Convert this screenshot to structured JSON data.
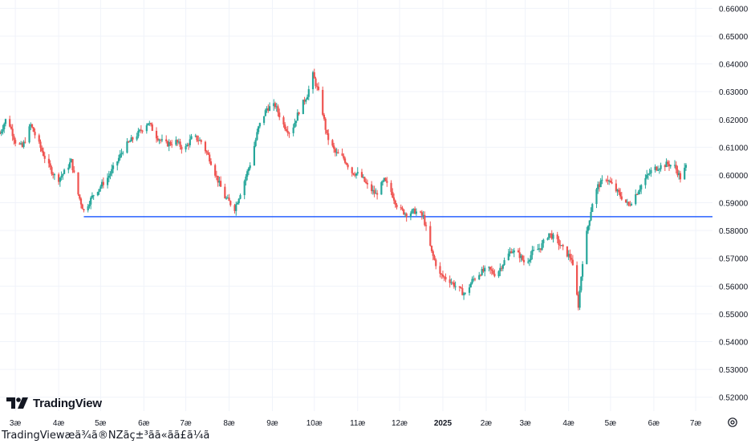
{
  "logo": {
    "text": "TradingView",
    "icon": "tradingview-logo-icon"
  },
  "caption": "TradingViewæä¾ã®NZãç±³ãã«ãã£ã¼ã",
  "settings_icon": "gear-icon",
  "colors": {
    "up": "#26a69a",
    "down": "#ef5350",
    "support_line": "#2962ff",
    "grid": "#f0f3fa"
  },
  "chart_data": {
    "type": "candlestick",
    "title": "",
    "xlabel": "",
    "ylabel": "",
    "ylim": [
      0.515,
      0.663
    ],
    "y_ticks": [
      "0.52000",
      "0.53000",
      "0.54000",
      "0.55000",
      "0.56000",
      "0.57000",
      "0.58000",
      "0.59000",
      "0.60000",
      "0.61000",
      "0.62000",
      "0.63000",
      "0.64000",
      "0.65000",
      "0.66000"
    ],
    "x_ticks": [
      "3æ",
      "4æ",
      "5æ",
      "6æ",
      "7æ",
      "8æ",
      "9æ",
      "10æ",
      "11æ",
      "12æ",
      "2025",
      "2æ",
      "3æ",
      "4æ",
      "5æ",
      "6æ",
      "7æ"
    ],
    "x_tick_bold": "2025",
    "x_range": [
      "2024-02-19",
      "2025-07-13"
    ],
    "x_tick_dates": [
      "2024-03-01",
      "2024-04-01",
      "2024-05-01",
      "2024-06-01",
      "2024-07-01",
      "2024-08-01",
      "2024-09-01",
      "2024-10-01",
      "2024-11-01",
      "2024-12-01",
      "2025-01-01",
      "2025-02-01",
      "2025-03-01",
      "2025-04-01",
      "2025-05-01",
      "2025-06-01",
      "2025-07-01"
    ],
    "horizontal_line": {
      "value": 0.585,
      "from": "2024-04-19",
      "to": "2025-07-13"
    },
    "path_anchors": [
      [
        "2024-02-19",
        0.615
      ],
      [
        "2024-02-24",
        0.621
      ],
      [
        "2024-03-01",
        0.612
      ],
      [
        "2024-03-06",
        0.61
      ],
      [
        "2024-03-12",
        0.618
      ],
      [
        "2024-03-18",
        0.611
      ],
      [
        "2024-03-24",
        0.604
      ],
      [
        "2024-03-31",
        0.598
      ],
      [
        "2024-04-05",
        0.601
      ],
      [
        "2024-04-10",
        0.605
      ],
      [
        "2024-04-15",
        0.593
      ],
      [
        "2024-04-19",
        0.587
      ],
      [
        "2024-04-26",
        0.593
      ],
      [
        "2024-05-01",
        0.596
      ],
      [
        "2024-05-06",
        0.599
      ],
      [
        "2024-05-12",
        0.604
      ],
      [
        "2024-05-18",
        0.61
      ],
      [
        "2024-05-24",
        0.613
      ],
      [
        "2024-05-28",
        0.615
      ],
      [
        "2024-06-04",
        0.619
      ],
      [
        "2024-06-10",
        0.614
      ],
      [
        "2024-06-16",
        0.611
      ],
      [
        "2024-06-24",
        0.612
      ],
      [
        "2024-06-30",
        0.609
      ],
      [
        "2024-07-06",
        0.614
      ],
      [
        "2024-07-12",
        0.612
      ],
      [
        "2024-07-18",
        0.606
      ],
      [
        "2024-07-24",
        0.598
      ],
      [
        "2024-07-29",
        0.592
      ],
      [
        "2024-08-05",
        0.588
      ],
      [
        "2024-08-10",
        0.595
      ],
      [
        "2024-08-16",
        0.604
      ],
      [
        "2024-08-22",
        0.617
      ],
      [
        "2024-08-28",
        0.624
      ],
      [
        "2024-09-03",
        0.625
      ],
      [
        "2024-09-09",
        0.618
      ],
      [
        "2024-09-14",
        0.615
      ],
      [
        "2024-09-20",
        0.623
      ],
      [
        "2024-09-26",
        0.629
      ],
      [
        "2024-09-30",
        0.636
      ],
      [
        "2024-10-05",
        0.628
      ],
      [
        "2024-10-10",
        0.614
      ],
      [
        "2024-10-16",
        0.608
      ],
      [
        "2024-10-22",
        0.606
      ],
      [
        "2024-10-28",
        0.601
      ],
      [
        "2024-11-03",
        0.6
      ],
      [
        "2024-11-08",
        0.596
      ],
      [
        "2024-11-14",
        0.593
      ],
      [
        "2024-11-20",
        0.598
      ],
      [
        "2024-11-25",
        0.594
      ],
      [
        "2024-11-30",
        0.588
      ],
      [
        "2024-12-06",
        0.586
      ],
      [
        "2024-12-12",
        0.587
      ],
      [
        "2024-12-18",
        0.585
      ],
      [
        "2024-12-24",
        0.572
      ],
      [
        "2024-12-30",
        0.564
      ],
      [
        "2025-01-06",
        0.562
      ],
      [
        "2025-01-12",
        0.559
      ],
      [
        "2025-01-17",
        0.557
      ],
      [
        "2025-01-22",
        0.562
      ],
      [
        "2025-01-28",
        0.565
      ],
      [
        "2025-02-03",
        0.566
      ],
      [
        "2025-02-08",
        0.564
      ],
      [
        "2025-02-14",
        0.569
      ],
      [
        "2025-02-19",
        0.573
      ],
      [
        "2025-02-25",
        0.571
      ],
      [
        "2025-03-01",
        0.568
      ],
      [
        "2025-03-06",
        0.572
      ],
      [
        "2025-03-12",
        0.574
      ],
      [
        "2025-03-18",
        0.579
      ],
      [
        "2025-03-24",
        0.576
      ],
      [
        "2025-03-30",
        0.572
      ],
      [
        "2025-04-03",
        0.57
      ],
      [
        "2025-04-08",
        0.553
      ],
      [
        "2025-04-11",
        0.569
      ],
      [
        "2025-04-14",
        0.579
      ],
      [
        "2025-04-18",
        0.59
      ],
      [
        "2025-04-22",
        0.596
      ],
      [
        "2025-04-28",
        0.599
      ],
      [
        "2025-05-04",
        0.595
      ],
      [
        "2025-05-09",
        0.592
      ],
      [
        "2025-05-14",
        0.589
      ],
      [
        "2025-05-19",
        0.593
      ],
      [
        "2025-05-25",
        0.598
      ],
      [
        "2025-05-31",
        0.602
      ],
      [
        "2025-06-05",
        0.603
      ],
      [
        "2025-06-11",
        0.604
      ],
      [
        "2025-06-16",
        0.603
      ],
      [
        "2025-06-20",
        0.599
      ],
      [
        "2025-06-24",
        0.603
      ]
    ]
  }
}
